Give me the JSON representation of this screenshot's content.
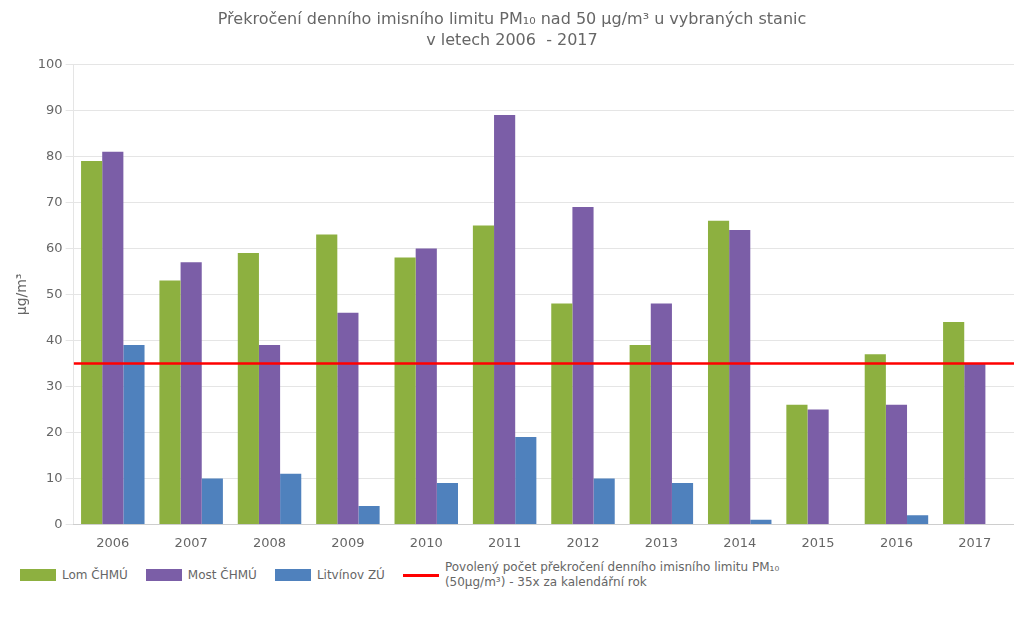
{
  "chart_data": {
    "type": "bar",
    "title": "Překročení denního imisního limitu PM₁₀ nad 50 μg/m³ u vybraných stanic",
    "subtitle": "v letech 2006  - 2017",
    "y_label": "μg/m³",
    "categories": [
      "2006",
      "2007",
      "2008",
      "2009",
      "2010",
      "2011",
      "2012",
      "2013",
      "2014",
      "2015",
      "2016",
      "2017"
    ],
    "series": [
      {
        "name": "Lom ČHMÚ",
        "color": "#8DB040",
        "values": [
          79,
          53,
          59,
          63,
          58,
          65,
          48,
          39,
          66,
          26,
          37,
          44
        ]
      },
      {
        "name": "Most ČHMÚ",
        "color": "#7B5EA7",
        "values": [
          81,
          57,
          39,
          46,
          60,
          89,
          69,
          48,
          64,
          25,
          26,
          35
        ]
      },
      {
        "name": "Litvínov ZÚ",
        "color": "#4F81BD",
        "values": [
          39,
          10,
          11,
          4,
          9,
          19,
          10,
          9,
          1,
          null,
          2,
          null
        ]
      }
    ],
    "reference_lines": [
      {
        "value": 35,
        "color": "#FF0000",
        "label": [
          "Povolený počet překročení denního imisního limitu PM₁₀",
          "(50μg/m³) - 35x za kalendářní rok"
        ]
      }
    ],
    "ylim": [
      0,
      100
    ],
    "yticks": [
      0,
      10,
      20,
      30,
      40,
      50,
      60,
      70,
      80,
      90,
      100
    ],
    "grid": true,
    "legend": "lower left"
  }
}
